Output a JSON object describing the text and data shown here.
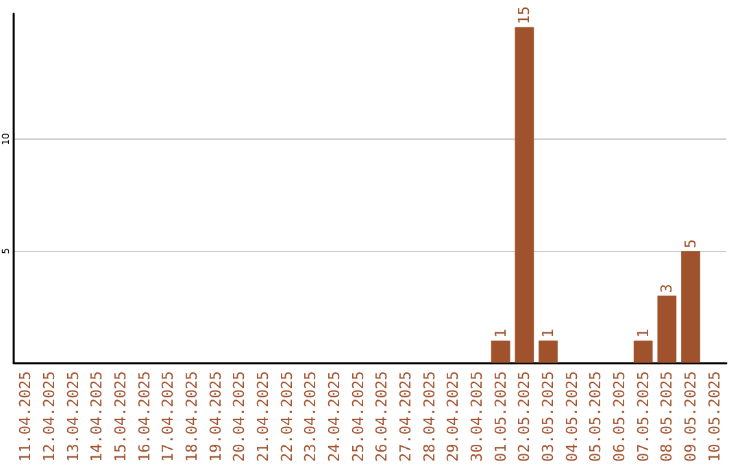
{
  "chart_data": {
    "type": "bar",
    "categories": [
      "11.04.2025",
      "12.04.2025",
      "13.04.2025",
      "14.04.2025",
      "15.04.2025",
      "16.04.2025",
      "17.04.2025",
      "18.04.2025",
      "19.04.2025",
      "20.04.2025",
      "21.04.2025",
      "22.04.2025",
      "23.04.2025",
      "24.04.2025",
      "25.04.2025",
      "26.04.2025",
      "27.04.2025",
      "28.04.2025",
      "29.04.2025",
      "30.04.2025",
      "01.05.2025",
      "02.05.2025",
      "03.05.2025",
      "04.05.2025",
      "05.05.2025",
      "06.05.2025",
      "07.05.2025",
      "08.05.2025",
      "09.05.2025",
      "10.05.2025"
    ],
    "values": [
      0,
      0,
      0,
      0,
      0,
      0,
      0,
      0,
      0,
      0,
      0,
      0,
      0,
      0,
      0,
      0,
      0,
      0,
      0,
      0,
      1,
      15,
      1,
      0,
      0,
      0,
      1,
      3,
      5,
      0
    ],
    "value_labels": [
      null,
      null,
      null,
      null,
      null,
      null,
      null,
      null,
      null,
      null,
      null,
      null,
      null,
      null,
      null,
      null,
      null,
      null,
      null,
      null,
      "1",
      "15",
      "1",
      null,
      null,
      null,
      "1",
      "3",
      "5",
      null
    ],
    "color": "#a0522d",
    "ylim": [
      0,
      15.6
    ],
    "yticks": [
      5,
      10
    ],
    "grid": "y"
  }
}
